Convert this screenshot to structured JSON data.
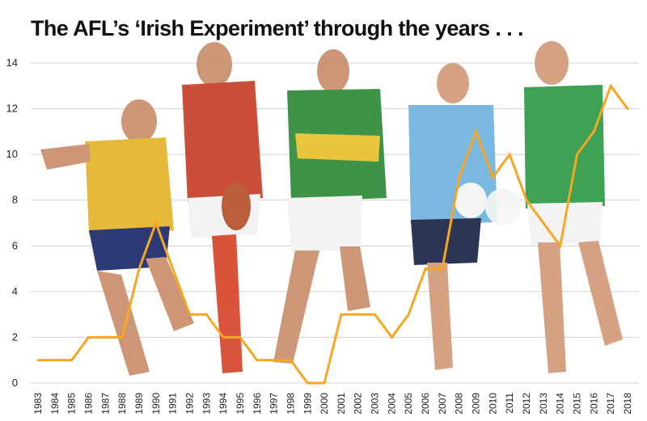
{
  "chart_data": {
    "type": "line",
    "title": "The AFL’s ‘Irish Experiment’ through the years . . .",
    "xlabel": "",
    "ylabel": "",
    "x": [
      "1983",
      "1984",
      "1985",
      "1986",
      "1987",
      "1988",
      "1989",
      "1990",
      "1991",
      "1992",
      "1993",
      "1994",
      "1995",
      "1996",
      "1997",
      "1998",
      "1999",
      "2000",
      "2001",
      "2002",
      "2003",
      "2004",
      "2005",
      "2006",
      "2007",
      "2008",
      "2009",
      "2010",
      "2011",
      "2012",
      "2013",
      "2014",
      "2015",
      "2016",
      "2017",
      "2018"
    ],
    "y_ticks": [
      "0",
      "2",
      "4",
      "6",
      "8",
      "10",
      "12",
      "14"
    ],
    "series": [
      {
        "values": [
          1,
          1,
          1,
          2,
          2,
          2,
          5,
          7,
          5,
          3,
          3,
          2,
          2,
          1,
          1,
          1,
          0,
          0,
          3,
          3,
          3,
          2,
          3,
          5,
          5,
          9,
          11,
          9,
          10,
          8,
          7,
          6,
          10,
          11,
          13,
          12
        ]
      }
    ],
    "ylim": [
      0,
      14
    ],
    "grid": true,
    "line_color": "#f5a623"
  }
}
